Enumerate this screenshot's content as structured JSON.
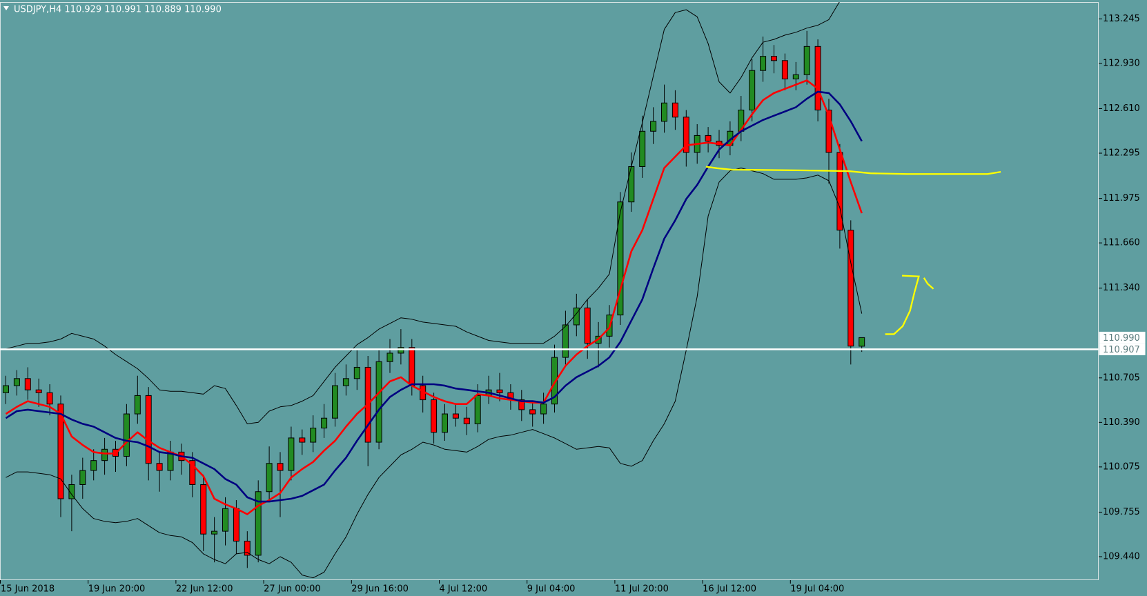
{
  "chart_data": {
    "type": "candlestick",
    "title": "USDJPY,H4  110.929 110.991 110.889 110.990",
    "categories": [
      "15 Jun 2018",
      null,
      null,
      null,
      null,
      null,
      null,
      null,
      "19 Jun 20:00",
      null,
      null,
      null,
      null,
      null,
      null,
      null,
      "22 Jun 12:00",
      null,
      null,
      null,
      null,
      null,
      null,
      null,
      "27 Jun 00:00",
      null,
      null,
      null,
      null,
      null,
      null,
      null,
      "29 Jun 16:00",
      null,
      null,
      null,
      null,
      null,
      null,
      null,
      "4 Jul 12:00",
      null,
      null,
      null,
      null,
      null,
      null,
      null,
      "9 Jul 04:00",
      null,
      null,
      null,
      null,
      null,
      null,
      null,
      "11 Jul 20:00",
      null,
      null,
      null,
      null,
      null,
      null,
      null,
      "16 Jul 12:00",
      null,
      null,
      null,
      null,
      null,
      null,
      null,
      "19 Jul 04:00",
      null,
      null,
      null,
      null,
      null,
      null
    ],
    "ohlc": [
      [
        110.6,
        110.72,
        110.52,
        110.65
      ],
      [
        110.65,
        110.76,
        110.58,
        110.7
      ],
      [
        110.7,
        110.78,
        110.55,
        110.62
      ],
      [
        110.62,
        110.7,
        110.5,
        110.6
      ],
      [
        110.6,
        110.66,
        110.44,
        110.52
      ],
      [
        110.52,
        110.58,
        109.72,
        109.85
      ],
      [
        109.85,
        110.02,
        109.62,
        109.95
      ],
      [
        109.95,
        110.14,
        109.85,
        110.05
      ],
      [
        110.05,
        110.2,
        109.98,
        110.12
      ],
      [
        110.12,
        110.28,
        110.02,
        110.2
      ],
      [
        110.2,
        110.26,
        110.04,
        110.15
      ],
      [
        110.15,
        110.52,
        110.08,
        110.45
      ],
      [
        110.45,
        110.72,
        110.38,
        110.58
      ],
      [
        110.58,
        110.64,
        109.98,
        110.1
      ],
      [
        110.1,
        110.18,
        109.9,
        110.05
      ],
      [
        110.05,
        110.26,
        109.98,
        110.18
      ],
      [
        110.18,
        110.24,
        110.02,
        110.12
      ],
      [
        110.12,
        110.18,
        109.86,
        109.95
      ],
      [
        109.95,
        110.02,
        109.48,
        109.6
      ],
      [
        109.6,
        109.72,
        109.4,
        109.62
      ],
      [
        109.62,
        109.86,
        109.52,
        109.78
      ],
      [
        109.78,
        109.84,
        109.46,
        109.55
      ],
      [
        109.55,
        109.62,
        109.36,
        109.45
      ],
      [
        109.45,
        109.98,
        109.4,
        109.9
      ],
      [
        109.9,
        110.22,
        109.84,
        110.1
      ],
      [
        110.1,
        110.18,
        109.72,
        110.05
      ],
      [
        110.05,
        110.36,
        109.98,
        110.28
      ],
      [
        110.28,
        110.34,
        110.16,
        110.25
      ],
      [
        110.25,
        110.44,
        110.18,
        110.35
      ],
      [
        110.35,
        110.52,
        110.28,
        110.42
      ],
      [
        110.42,
        110.74,
        110.36,
        110.65
      ],
      [
        110.65,
        110.8,
        110.58,
        110.7
      ],
      [
        110.7,
        110.9,
        110.62,
        110.78
      ],
      [
        110.78,
        110.86,
        110.08,
        110.25
      ],
      [
        110.25,
        110.9,
        110.2,
        110.82
      ],
      [
        110.82,
        110.98,
        110.74,
        110.88
      ],
      [
        110.88,
        111.05,
        110.8,
        110.92
      ],
      [
        110.92,
        110.98,
        110.58,
        110.65
      ],
      [
        110.65,
        110.72,
        110.46,
        110.55
      ],
      [
        110.55,
        110.6,
        110.24,
        110.32
      ],
      [
        110.32,
        110.52,
        110.26,
        110.45
      ],
      [
        110.45,
        110.52,
        110.36,
        110.42
      ],
      [
        110.42,
        110.5,
        110.3,
        110.38
      ],
      [
        110.38,
        110.66,
        110.32,
        110.58
      ],
      [
        110.58,
        110.72,
        110.52,
        110.62
      ],
      [
        110.62,
        110.74,
        110.54,
        110.6
      ],
      [
        110.6,
        110.66,
        110.48,
        110.55
      ],
      [
        110.55,
        110.62,
        110.4,
        110.48
      ],
      [
        110.48,
        110.54,
        110.36,
        110.45
      ],
      [
        110.45,
        110.6,
        110.38,
        110.52
      ],
      [
        110.52,
        110.94,
        110.46,
        110.85
      ],
      [
        110.85,
        111.18,
        110.8,
        111.08
      ],
      [
        111.08,
        111.3,
        111.0,
        111.2
      ],
      [
        111.2,
        111.26,
        110.84,
        110.95
      ],
      [
        110.95,
        111.1,
        110.78,
        111.0
      ],
      [
        111.0,
        111.22,
        110.92,
        111.15
      ],
      [
        111.15,
        112.02,
        111.08,
        111.95
      ],
      [
        111.95,
        112.3,
        111.88,
        112.2
      ],
      [
        112.2,
        112.56,
        112.12,
        112.45
      ],
      [
        112.45,
        112.62,
        112.36,
        112.52
      ],
      [
        112.52,
        112.78,
        112.44,
        112.65
      ],
      [
        112.65,
        112.74,
        112.46,
        112.55
      ],
      [
        112.55,
        112.6,
        112.2,
        112.3
      ],
      [
        112.3,
        112.5,
        112.22,
        112.42
      ],
      [
        112.42,
        112.48,
        112.3,
        112.38
      ],
      [
        112.38,
        112.46,
        112.26,
        112.35
      ],
      [
        112.35,
        112.52,
        112.28,
        112.45
      ],
      [
        112.45,
        112.7,
        112.38,
        112.6
      ],
      [
        112.6,
        112.96,
        112.52,
        112.88
      ],
      [
        112.88,
        113.12,
        112.8,
        112.98
      ],
      [
        112.98,
        113.06,
        112.86,
        112.95
      ],
      [
        112.95,
        113.0,
        112.74,
        112.82
      ],
      [
        112.82,
        112.94,
        112.74,
        112.85
      ],
      [
        112.85,
        113.16,
        112.78,
        113.05
      ],
      [
        113.05,
        113.1,
        112.52,
        112.6
      ],
      [
        112.6,
        112.68,
        112.08,
        112.3
      ],
      [
        112.3,
        112.36,
        111.62,
        111.75
      ],
      [
        111.75,
        111.82,
        110.8,
        110.93
      ],
      [
        110.929,
        110.991,
        110.889,
        110.99
      ]
    ],
    "up_color": "#228b22",
    "down_color": "#ff0000",
    "wick_color": "#000000",
    "series": [
      {
        "color": "#ff0000",
        "width": 2.6,
        "values": [
          110.45,
          110.5,
          110.54,
          110.52,
          110.5,
          110.45,
          110.29,
          110.23,
          110.18,
          110.17,
          110.17,
          110.25,
          110.32,
          110.26,
          110.21,
          110.18,
          110.15,
          110.09,
          110.01,
          109.85,
          109.81,
          109.78,
          109.74,
          109.8,
          109.84,
          109.89,
          110.0,
          110.06,
          110.11,
          110.19,
          110.26,
          110.36,
          110.45,
          110.52,
          110.6,
          110.68,
          110.71,
          110.65,
          110.61,
          110.57,
          110.54,
          110.52,
          110.52,
          110.59,
          110.58,
          110.56,
          110.55,
          110.54,
          110.53,
          110.53,
          110.67,
          110.79,
          110.87,
          110.93,
          110.98,
          111.06,
          111.33,
          111.6,
          111.75,
          111.97,
          112.19,
          112.27,
          112.35,
          112.36,
          112.37,
          112.36,
          112.35,
          112.46,
          112.57,
          112.67,
          112.72,
          112.75,
          112.78,
          112.81,
          112.75,
          112.56,
          112.32,
          112.09,
          111.87
        ]
      },
      {
        "color": "#000080",
        "width": 2.6,
        "values": [
          110.42,
          110.47,
          110.48,
          110.47,
          110.46,
          110.45,
          110.41,
          110.38,
          110.36,
          110.32,
          110.28,
          110.26,
          110.25,
          110.22,
          110.18,
          110.17,
          110.15,
          110.14,
          110.1,
          110.06,
          109.99,
          109.95,
          109.86,
          109.83,
          109.83,
          109.84,
          109.85,
          109.87,
          109.91,
          109.95,
          110.05,
          110.14,
          110.26,
          110.37,
          110.48,
          110.57,
          110.62,
          110.66,
          110.66,
          110.66,
          110.65,
          110.63,
          110.62,
          110.61,
          110.6,
          110.58,
          110.56,
          110.54,
          110.54,
          110.53,
          110.57,
          110.65,
          110.71,
          110.75,
          110.79,
          110.85,
          110.96,
          111.11,
          111.26,
          111.48,
          111.69,
          111.82,
          111.97,
          112.07,
          112.2,
          112.32,
          112.39,
          112.45,
          112.49,
          112.53,
          112.56,
          112.59,
          112.62,
          112.68,
          112.73,
          112.72,
          112.64,
          112.52,
          112.38
        ]
      },
      {
        "color": "#000000",
        "width": 1,
        "values": [
          110.91,
          110.93,
          110.95,
          110.95,
          110.96,
          110.98,
          111.02,
          111.0,
          110.98,
          110.93,
          110.87,
          110.82,
          110.77,
          110.7,
          110.62,
          110.61,
          110.61,
          110.6,
          110.59,
          110.65,
          110.63,
          110.51,
          110.38,
          110.39,
          110.47,
          110.5,
          110.51,
          110.54,
          110.58,
          110.68,
          110.78,
          110.86,
          110.94,
          110.99,
          111.05,
          111.09,
          111.13,
          111.12,
          111.1,
          111.09,
          111.08,
          111.07,
          111.03,
          111.0,
          110.97,
          110.96,
          110.95,
          110.95,
          110.95,
          110.95,
          111.0,
          111.07,
          111.16,
          111.26,
          111.34,
          111.44,
          111.88,
          112.2,
          112.51,
          112.84,
          113.17,
          113.29,
          113.31,
          113.26,
          113.07,
          112.8,
          112.72,
          112.83,
          112.97,
          113.08,
          113.1,
          113.13,
          113.15,
          113.18,
          113.2,
          113.24,
          113.37,
          null,
          null
        ]
      },
      {
        "color": "#000000",
        "width": 1,
        "values": [
          110.0,
          110.04,
          110.04,
          110.03,
          110.02,
          109.99,
          109.88,
          109.78,
          109.71,
          109.69,
          109.68,
          109.69,
          109.71,
          109.66,
          109.61,
          109.59,
          109.58,
          109.54,
          109.46,
          109.42,
          109.39,
          109.46,
          109.47,
          109.42,
          109.39,
          109.44,
          109.4,
          109.31,
          109.29,
          109.33,
          109.46,
          109.58,
          109.74,
          109.88,
          110.0,
          110.08,
          110.16,
          110.2,
          110.25,
          110.23,
          110.2,
          110.19,
          110.18,
          110.22,
          110.27,
          110.29,
          110.3,
          110.32,
          110.34,
          110.31,
          110.28,
          110.24,
          110.2,
          110.21,
          110.22,
          110.21,
          110.1,
          110.08,
          110.12,
          110.26,
          110.38,
          110.54,
          110.9,
          111.28,
          111.85,
          112.09,
          112.17,
          112.19,
          112.17,
          112.15,
          112.11,
          112.11,
          112.11,
          112.12,
          112.14,
          112.1,
          111.91,
          111.52,
          111.16
        ]
      }
    ],
    "hline": 110.907,
    "last_price": {
      "value": 110.99,
      "label": "110.990"
    },
    "ylim": [
      109.274,
      113.364
    ],
    "yticks": [
      113.245,
      {
        "value": 112.93,
        "label": "112.930"
      },
      {
        "value": 112.61,
        "label": "112.610"
      },
      112.295,
      111.975,
      {
        "value": 111.66,
        "label": "111.660"
      },
      {
        "value": 111.34,
        "label": "111.340"
      },
      110.705,
      {
        "value": 110.39,
        "label": "110.390"
      },
      110.075,
      109.755,
      {
        "value": 109.44,
        "label": "109.440"
      }
    ]
  }
}
